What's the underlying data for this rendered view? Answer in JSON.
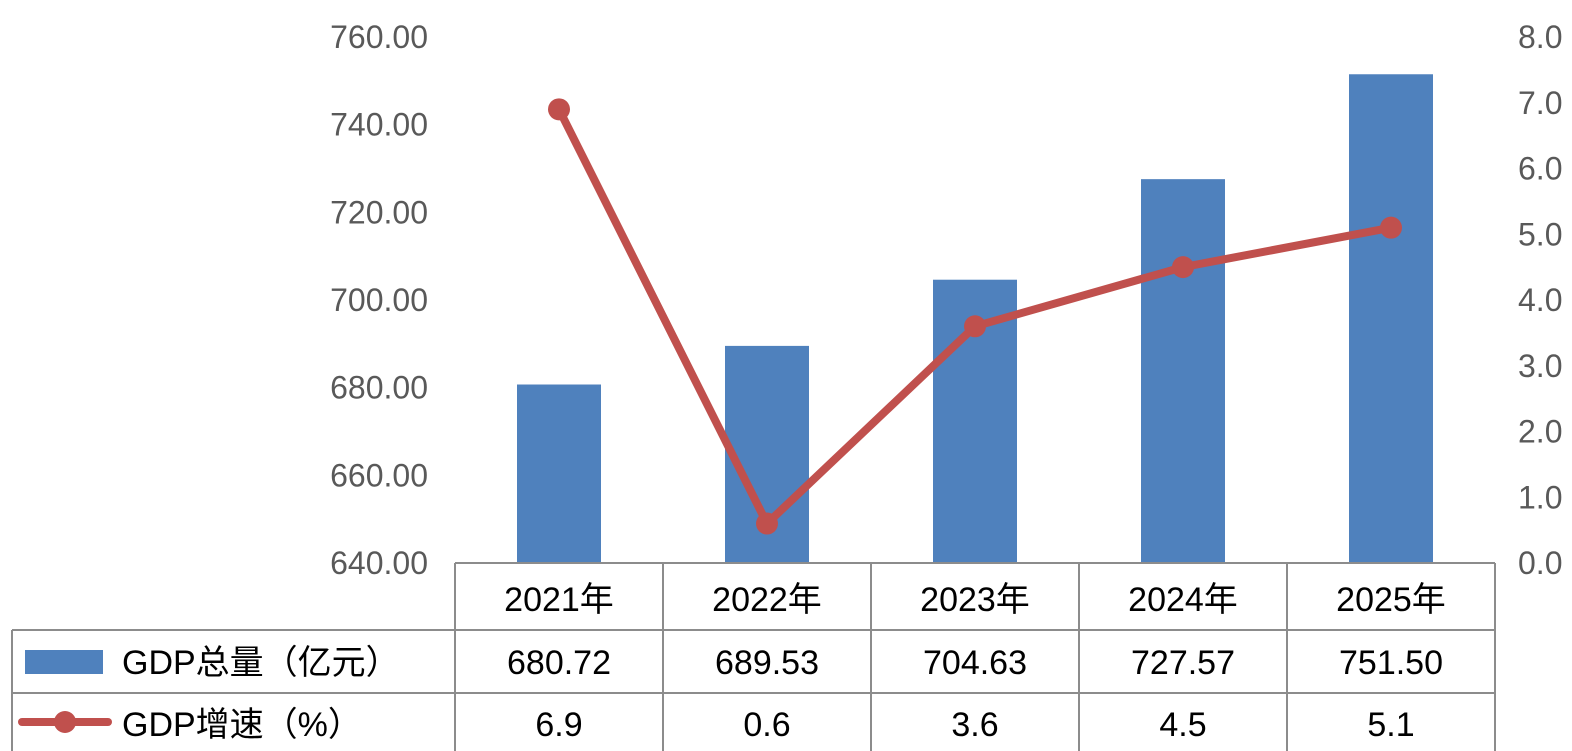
{
  "chart_data": {
    "type": "bar",
    "categories": [
      "2021年",
      "2022年",
      "2023年",
      "2024年",
      "2025年"
    ],
    "series": [
      {
        "name": "GDP总量（亿元）",
        "type": "bar",
        "axis": "left",
        "values": [
          680.72,
          689.53,
          704.63,
          727.57,
          751.5
        ],
        "value_labels": [
          "680.72",
          "689.53",
          "704.63",
          "727.57",
          "751.50"
        ],
        "color": "#4F81BD"
      },
      {
        "name": "GDP增速（%）",
        "type": "line",
        "axis": "right",
        "values": [
          6.9,
          0.6,
          3.6,
          4.5,
          5.1
        ],
        "value_labels": [
          "6.9",
          "0.6",
          "3.6",
          "4.5",
          "5.1"
        ],
        "color": "#C0504D"
      }
    ],
    "y_left": {
      "ylim": [
        640,
        760
      ],
      "ticks": [
        "640.00",
        "660.00",
        "680.00",
        "700.00",
        "720.00",
        "740.00",
        "760.00"
      ]
    },
    "y_right": {
      "ylim": [
        0,
        8
      ],
      "ticks": [
        "0.0",
        "1.0",
        "2.0",
        "3.0",
        "4.0",
        "5.0",
        "6.0",
        "7.0",
        "8.0"
      ]
    },
    "grid": false,
    "legend": "data-table"
  }
}
